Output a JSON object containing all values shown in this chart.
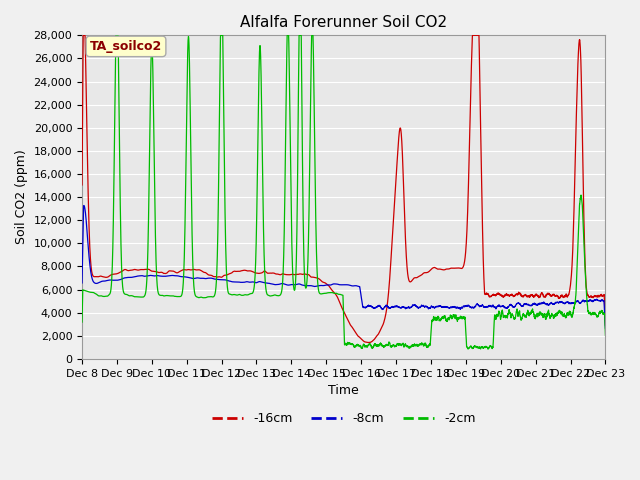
{
  "title": "Alfalfa Forerunner Soil CO2",
  "ylabel": "Soil CO2 (ppm)",
  "xlabel": "Time",
  "annotation": "TA_soilco2",
  "ylim": [
    0,
    28000
  ],
  "yticks": [
    0,
    2000,
    4000,
    6000,
    8000,
    10000,
    12000,
    14000,
    16000,
    18000,
    20000,
    22000,
    24000,
    26000,
    28000
  ],
  "legend_labels": [
    "-16cm",
    "-8cm",
    "-2cm"
  ],
  "line_colors": [
    "#cc0000",
    "#0000cc",
    "#00bb00"
  ],
  "fig_bg": "#f0f0f0",
  "plot_bg": "#e8e8e8",
  "grid_color": "#ffffff",
  "annotation_fg": "#8b0000",
  "annotation_bg": "#ffffcc",
  "title_fontsize": 11,
  "axis_fontsize": 9,
  "tick_fontsize": 8,
  "legend_fontsize": 9,
  "linewidth": 0.9
}
